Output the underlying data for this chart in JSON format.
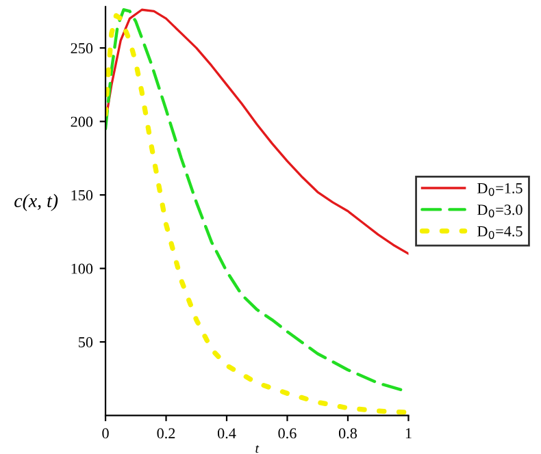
{
  "chart_data": {
    "type": "line",
    "xlabel": "t",
    "ylabel": "c(x, t)",
    "xlim": [
      0,
      1
    ],
    "ylim": [
      0,
      278
    ],
    "xticks": [
      0,
      {
        "value": 0.2,
        "label": "0.2"
      },
      {
        "value": 0.4,
        "label": "0.4"
      },
      {
        "value": 0.6,
        "label": "0.6"
      },
      {
        "value": 0.8,
        "label": "0.8"
      },
      1
    ],
    "yticks": [
      50,
      100,
      150,
      200,
      250
    ],
    "legend": "right",
    "grid": false,
    "series": [
      {
        "name": "D$_{0}$=1.5",
        "color": "#e31a1c",
        "line_style": "solid",
        "x": [
          0,
          0.02,
          0.05,
          0.08,
          0.12,
          0.16,
          0.2,
          0.25,
          0.3,
          0.35,
          0.4,
          0.45,
          0.5,
          0.55,
          0.6,
          0.65,
          0.7,
          0.75,
          0.8,
          0.85,
          0.9,
          0.95,
          1
        ],
        "values": [
          200,
          225,
          255,
          270,
          276,
          275,
          270,
          260,
          250,
          238,
          225,
          212,
          198,
          185,
          173,
          162,
          152,
          145,
          139,
          131,
          123,
          116,
          110
        ]
      },
      {
        "name": "D$_{0}$=3.0",
        "color": "#22dd22",
        "line_style": "dashed",
        "x": [
          0,
          0.02,
          0.04,
          0.06,
          0.08,
          0.1,
          0.15,
          0.2,
          0.25,
          0.3,
          0.35,
          0.4,
          0.45,
          0.5,
          0.55,
          0.6,
          0.7,
          0.8,
          0.9,
          1
        ],
        "values": [
          195,
          235,
          265,
          276,
          275,
          268,
          240,
          208,
          175,
          145,
          118,
          98,
          82,
          72,
          65,
          57,
          42,
          31,
          22,
          16
        ]
      },
      {
        "name": "D$_{0}$=4.5",
        "color": "#f5f000",
        "line_style": "dotted",
        "x": [
          0,
          0.01,
          0.02,
          0.035,
          0.05,
          0.08,
          0.1,
          0.12,
          0.15,
          0.18,
          0.2,
          0.25,
          0.3,
          0.35,
          0.4,
          0.5,
          0.6,
          0.7,
          0.8,
          0.9,
          1
        ],
        "values": [
          205,
          235,
          260,
          272,
          270,
          255,
          240,
          220,
          185,
          152,
          130,
          92,
          65,
          45,
          34,
          22,
          15,
          9,
          5,
          3,
          2
        ]
      }
    ]
  }
}
